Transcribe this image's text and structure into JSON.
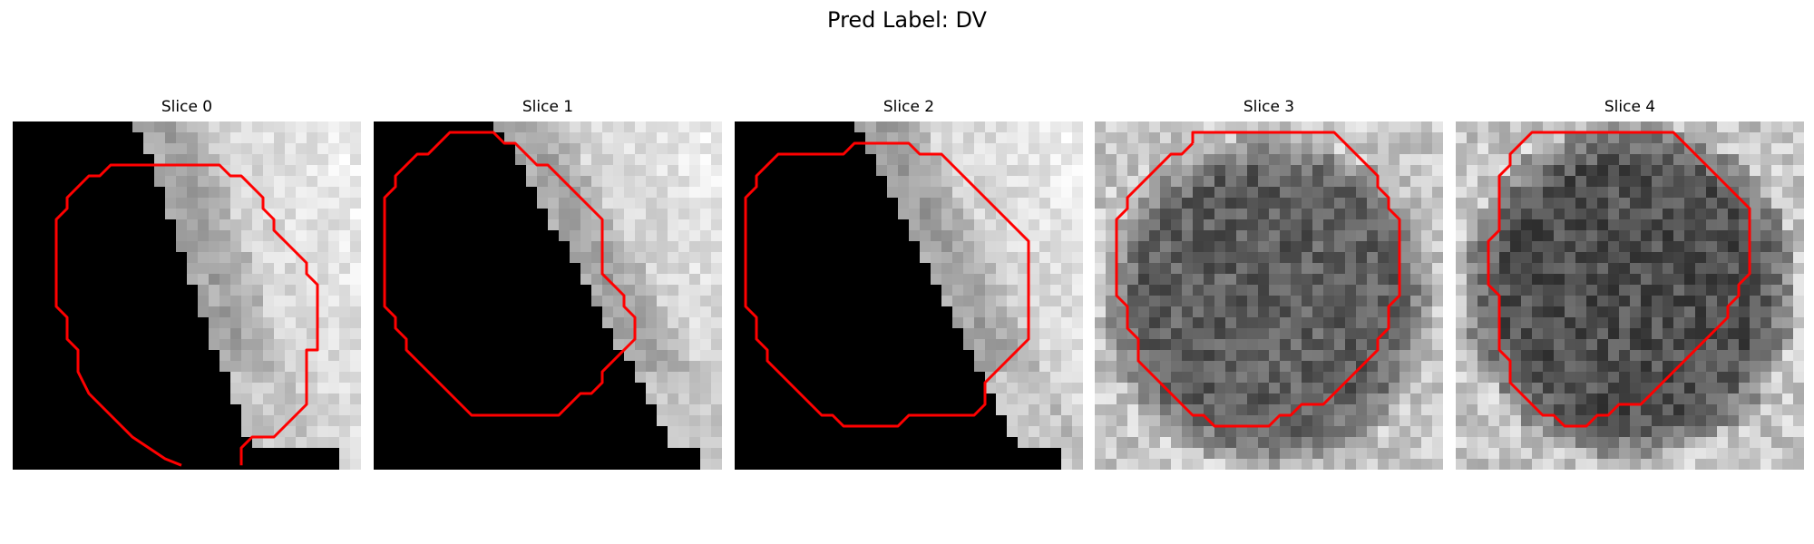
{
  "figure": {
    "title": "Pred Label: DV"
  },
  "panels": [
    {
      "title": "Slice 0",
      "image": "ct-slice-grayscale-with-black-wedge",
      "contour_color": "#ff0000"
    },
    {
      "title": "Slice 1",
      "image": "ct-slice-grayscale-with-black-wedge",
      "contour_color": "#ff0000"
    },
    {
      "title": "Slice 2",
      "image": "ct-slice-grayscale-with-black-wedge",
      "contour_color": "#ff0000"
    },
    {
      "title": "Slice 3",
      "image": "ct-slice-textured-dark-blob",
      "contour_color": "#ff0000"
    },
    {
      "title": "Slice 4",
      "image": "ct-slice-textured-dark-blob",
      "contour_color": "#ff0000"
    }
  ]
}
